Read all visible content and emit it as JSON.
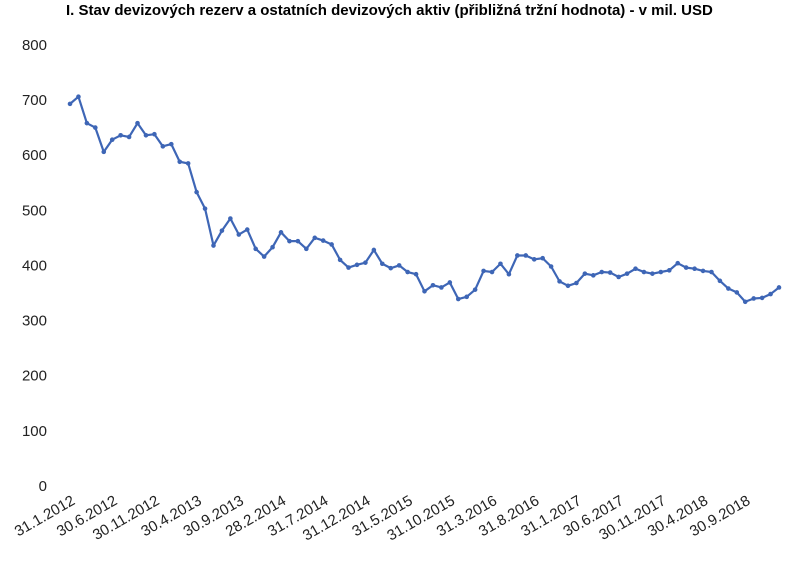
{
  "chart_data": {
    "type": "line",
    "title": "I. Stav devizových rezerv a ostatních devizových aktiv (přibližná tržní hodnota) - v mil. USD",
    "categories": [
      "31.1.2012",
      null,
      null,
      null,
      null,
      "30.6.2012",
      null,
      null,
      null,
      null,
      "30.11.2012",
      null,
      null,
      null,
      null,
      "30.4.2013",
      null,
      null,
      null,
      null,
      "30.9.2013",
      null,
      null,
      null,
      null,
      "28.2.2014",
      null,
      null,
      null,
      null,
      "31.7.2014",
      null,
      null,
      null,
      null,
      "31.12.2014",
      null,
      null,
      null,
      null,
      "31.5.2015",
      null,
      null,
      null,
      null,
      "31.10.2015",
      null,
      null,
      null,
      null,
      "31.3.2016",
      null,
      null,
      null,
      null,
      "31.8.2016",
      null,
      null,
      null,
      null,
      "31.1.2017",
      null,
      null,
      null,
      null,
      "30.6.2017",
      null,
      null,
      null,
      null,
      "30.11.2017",
      null,
      null,
      null,
      null,
      "30.4.2018",
      null,
      null,
      null,
      null,
      "30.9.2018",
      null,
      null,
      null,
      null
    ],
    "series": [
      {
        "color": "#3e66b6",
        "values": [
          695,
          708,
          660,
          652,
          608,
          630,
          638,
          635,
          660,
          638,
          640,
          618,
          622,
          590,
          587,
          535,
          505,
          438,
          465,
          487,
          458,
          467,
          432,
          418,
          435,
          462,
          446,
          446,
          432,
          452,
          447,
          440,
          412,
          398,
          403,
          407,
          430,
          405,
          397,
          402,
          390,
          386,
          355,
          366,
          362,
          371,
          341,
          345,
          358,
          392,
          390,
          405,
          386,
          420,
          420,
          413,
          415,
          400,
          373,
          365,
          370,
          387,
          384,
          390,
          389,
          381,
          387,
          396,
          390,
          387,
          390,
          393,
          406,
          398,
          396,
          392,
          390,
          374,
          360,
          353,
          336,
          342,
          343,
          350,
          362
        ]
      }
    ],
    "ylim": [
      0,
      800
    ],
    "yticks": [
      0,
      100,
      200,
      300,
      400,
      500,
      600,
      700,
      800
    ],
    "grid": false
  }
}
